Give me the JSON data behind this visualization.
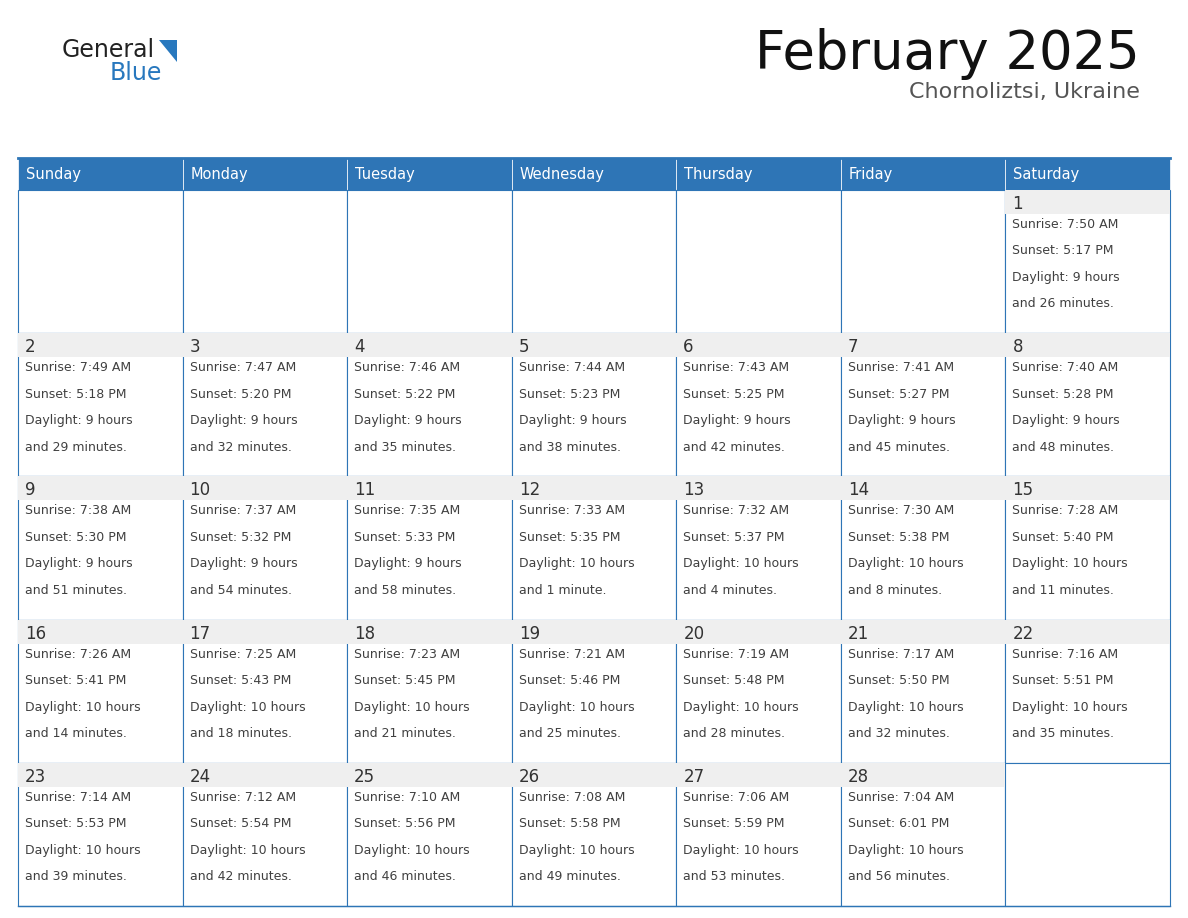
{
  "title": "February 2025",
  "subtitle": "Chornoliztsi, Ukraine",
  "header_bg": "#2E75B6",
  "header_text_color": "#FFFFFF",
  "cell_border_color": "#2E75B6",
  "day_number_color": "#333333",
  "day_number_bg": "#EFEFEF",
  "info_text_color": "#404040",
  "background_color": "#FFFFFF",
  "days_of_week": [
    "Sunday",
    "Monday",
    "Tuesday",
    "Wednesday",
    "Thursday",
    "Friday",
    "Saturday"
  ],
  "logo_general_color": "#222222",
  "logo_blue_color": "#2878BE",
  "calendar_data": [
    [
      null,
      null,
      null,
      null,
      null,
      null,
      {
        "day": 1,
        "sunrise": "7:50 AM",
        "sunset": "5:17 PM",
        "daylight": "9 hours",
        "daylight2": "and 26 minutes."
      }
    ],
    [
      {
        "day": 2,
        "sunrise": "7:49 AM",
        "sunset": "5:18 PM",
        "daylight": "9 hours",
        "daylight2": "and 29 minutes."
      },
      {
        "day": 3,
        "sunrise": "7:47 AM",
        "sunset": "5:20 PM",
        "daylight": "9 hours",
        "daylight2": "and 32 minutes."
      },
      {
        "day": 4,
        "sunrise": "7:46 AM",
        "sunset": "5:22 PM",
        "daylight": "9 hours",
        "daylight2": "and 35 minutes."
      },
      {
        "day": 5,
        "sunrise": "7:44 AM",
        "sunset": "5:23 PM",
        "daylight": "9 hours",
        "daylight2": "and 38 minutes."
      },
      {
        "day": 6,
        "sunrise": "7:43 AM",
        "sunset": "5:25 PM",
        "daylight": "9 hours",
        "daylight2": "and 42 minutes."
      },
      {
        "day": 7,
        "sunrise": "7:41 AM",
        "sunset": "5:27 PM",
        "daylight": "9 hours",
        "daylight2": "and 45 minutes."
      },
      {
        "day": 8,
        "sunrise": "7:40 AM",
        "sunset": "5:28 PM",
        "daylight": "9 hours",
        "daylight2": "and 48 minutes."
      }
    ],
    [
      {
        "day": 9,
        "sunrise": "7:38 AM",
        "sunset": "5:30 PM",
        "daylight": "9 hours",
        "daylight2": "and 51 minutes."
      },
      {
        "day": 10,
        "sunrise": "7:37 AM",
        "sunset": "5:32 PM",
        "daylight": "9 hours",
        "daylight2": "and 54 minutes."
      },
      {
        "day": 11,
        "sunrise": "7:35 AM",
        "sunset": "5:33 PM",
        "daylight": "9 hours",
        "daylight2": "and 58 minutes."
      },
      {
        "day": 12,
        "sunrise": "7:33 AM",
        "sunset": "5:35 PM",
        "daylight": "10 hours",
        "daylight2": "and 1 minute."
      },
      {
        "day": 13,
        "sunrise": "7:32 AM",
        "sunset": "5:37 PM",
        "daylight": "10 hours",
        "daylight2": "and 4 minutes."
      },
      {
        "day": 14,
        "sunrise": "7:30 AM",
        "sunset": "5:38 PM",
        "daylight": "10 hours",
        "daylight2": "and 8 minutes."
      },
      {
        "day": 15,
        "sunrise": "7:28 AM",
        "sunset": "5:40 PM",
        "daylight": "10 hours",
        "daylight2": "and 11 minutes."
      }
    ],
    [
      {
        "day": 16,
        "sunrise": "7:26 AM",
        "sunset": "5:41 PM",
        "daylight": "10 hours",
        "daylight2": "and 14 minutes."
      },
      {
        "day": 17,
        "sunrise": "7:25 AM",
        "sunset": "5:43 PM",
        "daylight": "10 hours",
        "daylight2": "and 18 minutes."
      },
      {
        "day": 18,
        "sunrise": "7:23 AM",
        "sunset": "5:45 PM",
        "daylight": "10 hours",
        "daylight2": "and 21 minutes."
      },
      {
        "day": 19,
        "sunrise": "7:21 AM",
        "sunset": "5:46 PM",
        "daylight": "10 hours",
        "daylight2": "and 25 minutes."
      },
      {
        "day": 20,
        "sunrise": "7:19 AM",
        "sunset": "5:48 PM",
        "daylight": "10 hours",
        "daylight2": "and 28 minutes."
      },
      {
        "day": 21,
        "sunrise": "7:17 AM",
        "sunset": "5:50 PM",
        "daylight": "10 hours",
        "daylight2": "and 32 minutes."
      },
      {
        "day": 22,
        "sunrise": "7:16 AM",
        "sunset": "5:51 PM",
        "daylight": "10 hours",
        "daylight2": "and 35 minutes."
      }
    ],
    [
      {
        "day": 23,
        "sunrise": "7:14 AM",
        "sunset": "5:53 PM",
        "daylight": "10 hours",
        "daylight2": "and 39 minutes."
      },
      {
        "day": 24,
        "sunrise": "7:12 AM",
        "sunset": "5:54 PM",
        "daylight": "10 hours",
        "daylight2": "and 42 minutes."
      },
      {
        "day": 25,
        "sunrise": "7:10 AM",
        "sunset": "5:56 PM",
        "daylight": "10 hours",
        "daylight2": "and 46 minutes."
      },
      {
        "day": 26,
        "sunrise": "7:08 AM",
        "sunset": "5:58 PM",
        "daylight": "10 hours",
        "daylight2": "and 49 minutes."
      },
      {
        "day": 27,
        "sunrise": "7:06 AM",
        "sunset": "5:59 PM",
        "daylight": "10 hours",
        "daylight2": "and 53 minutes."
      },
      {
        "day": 28,
        "sunrise": "7:04 AM",
        "sunset": "6:01 PM",
        "daylight": "10 hours",
        "daylight2": "and 56 minutes."
      },
      null
    ]
  ]
}
